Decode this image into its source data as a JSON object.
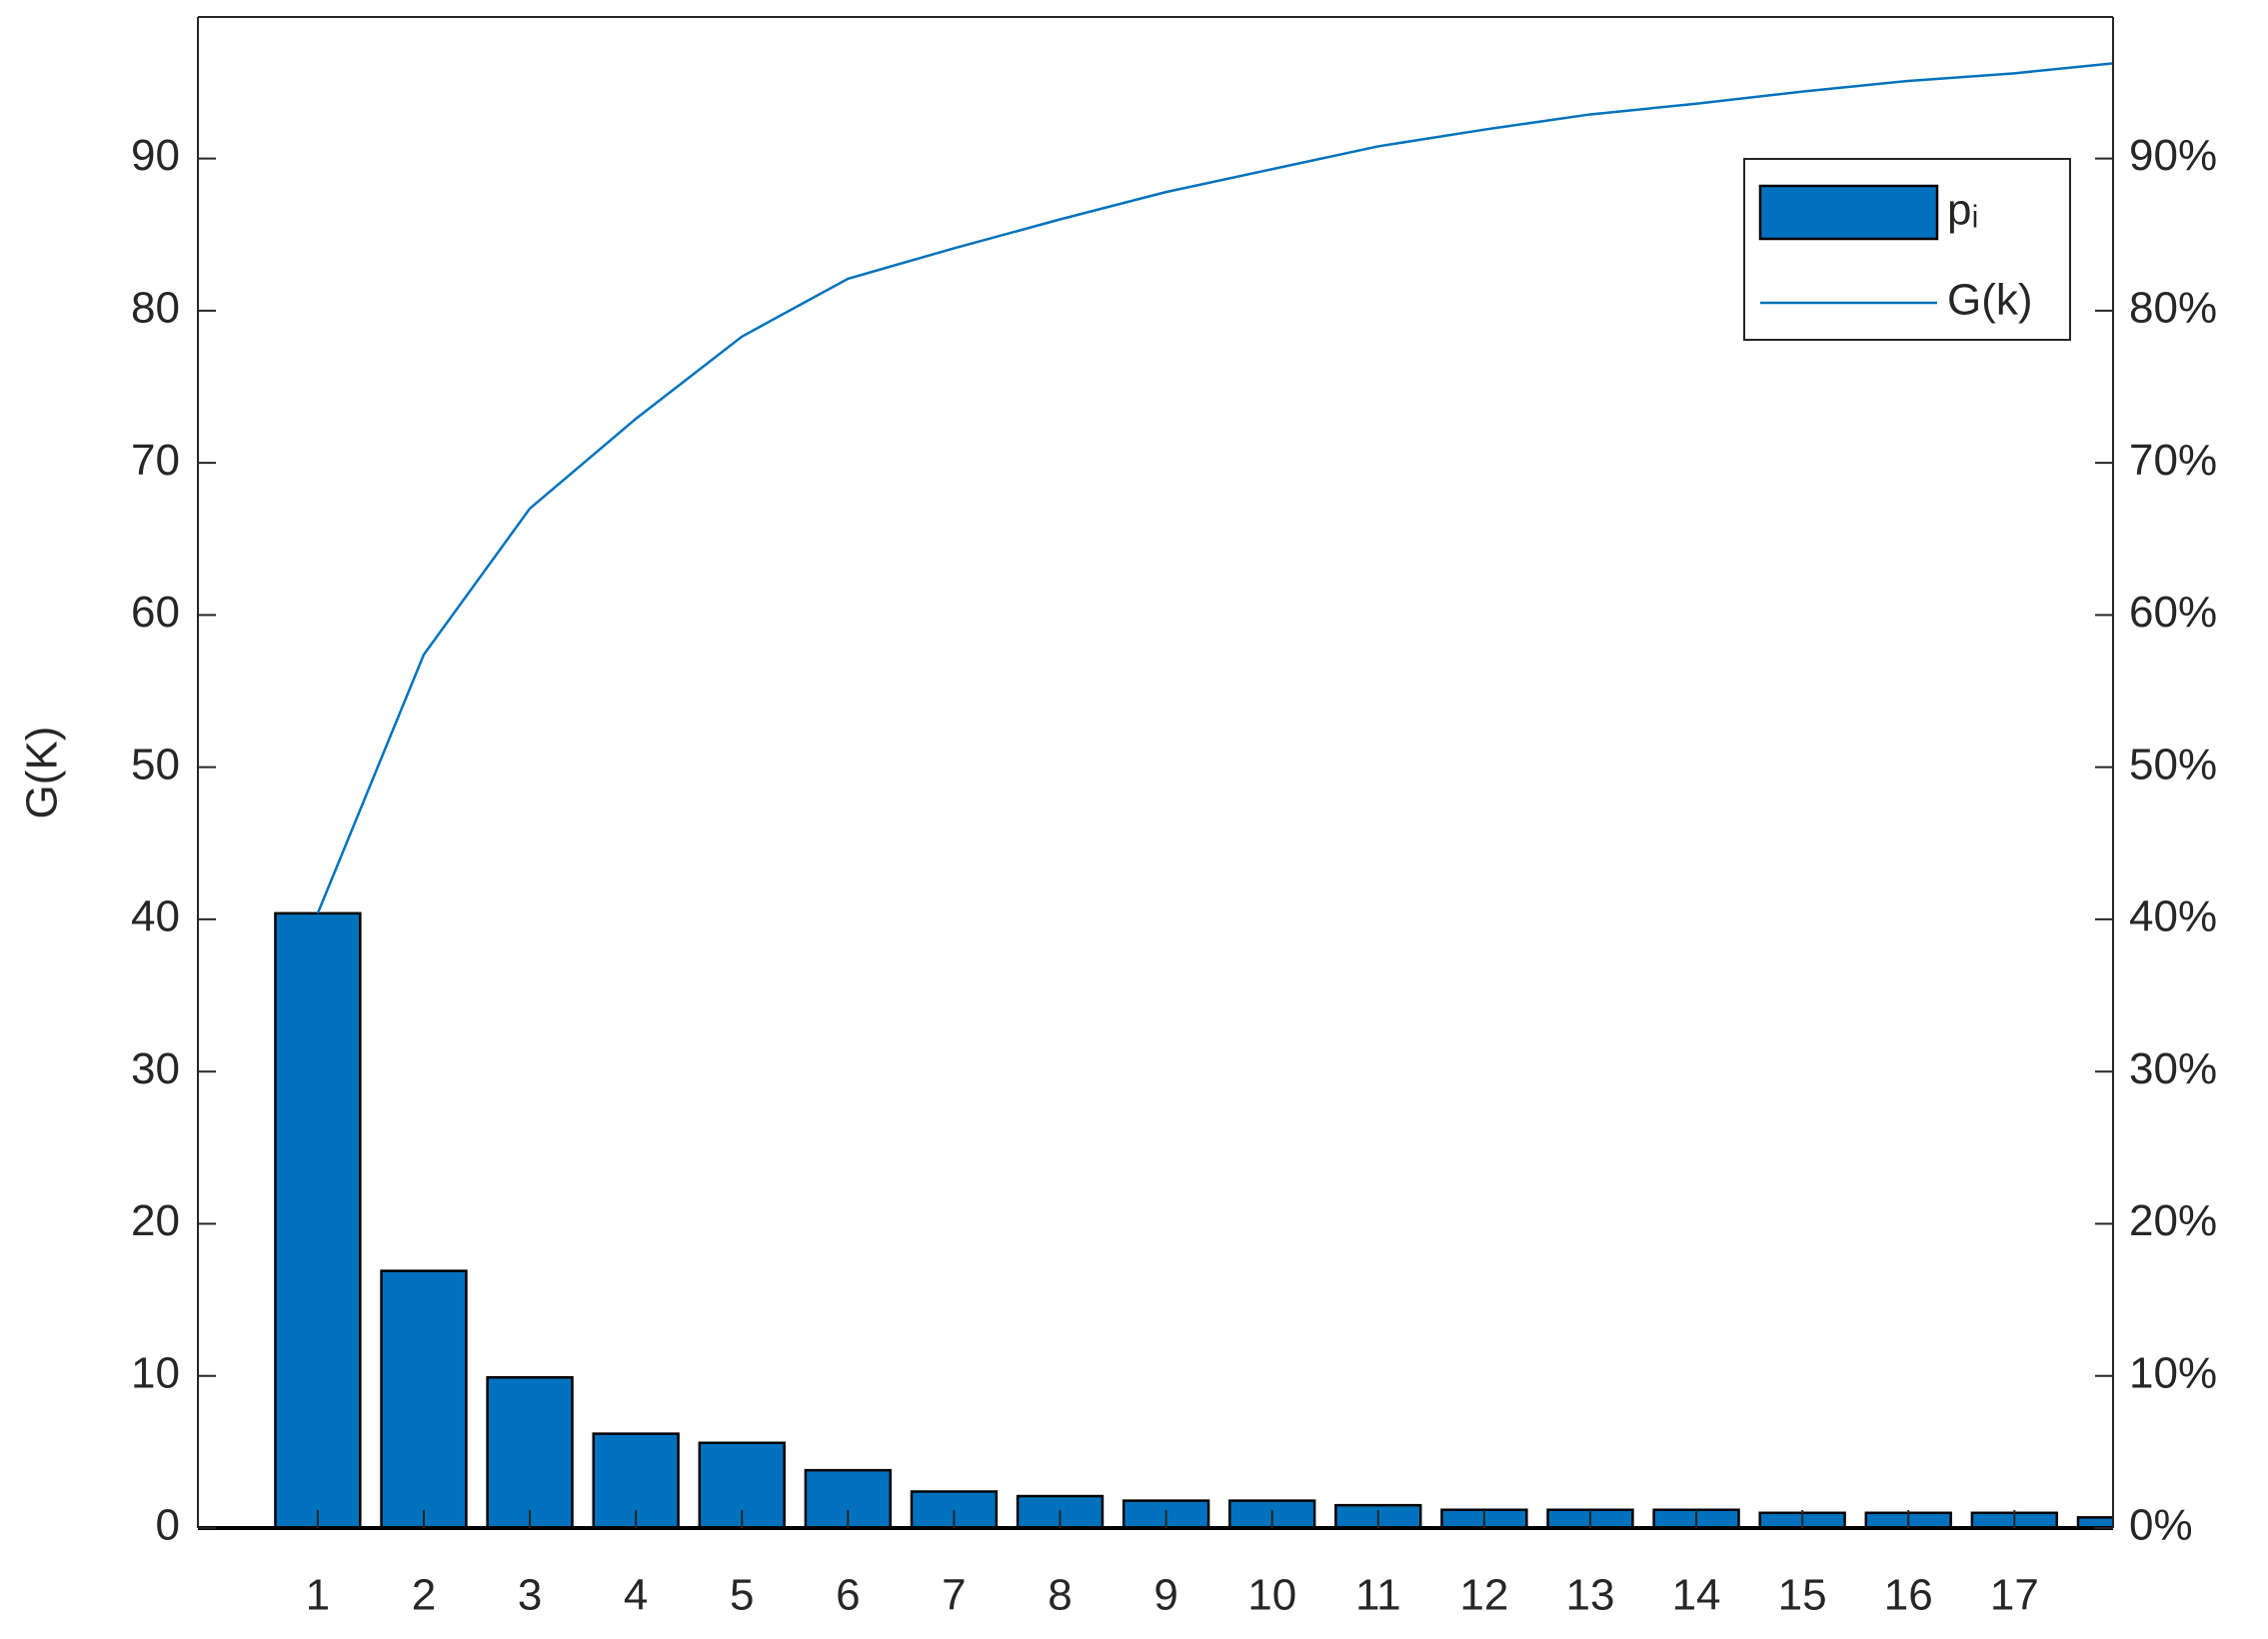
{
  "chart_data": {
    "type": "pareto",
    "y_label": "G(K)",
    "x": [
      1,
      2,
      3,
      4,
      5,
      6,
      7,
      8,
      9,
      10,
      11,
      12,
      13,
      14,
      15,
      16,
      17,
      18
    ],
    "xlim": [
      -0.13,
      17.93
    ],
    "xticks": [
      1,
      2,
      3,
      4,
      5,
      6,
      7,
      8,
      9,
      10,
      11,
      12,
      13,
      14,
      15,
      16,
      17
    ],
    "ylim": [
      0,
      99.3
    ],
    "yticks": [
      0,
      10,
      20,
      30,
      40,
      50,
      60,
      70,
      80,
      90
    ],
    "y2lim": [
      0,
      99.3
    ],
    "y2ticks": [
      {
        "value": 0,
        "label": "0%"
      },
      {
        "value": 10,
        "label": "10%"
      },
      {
        "value": 20,
        "label": "20%"
      },
      {
        "value": 30,
        "label": "30%"
      },
      {
        "value": 40,
        "label": "40%"
      },
      {
        "value": 50,
        "label": "50%"
      },
      {
        "value": 60,
        "label": "60%"
      },
      {
        "value": 70,
        "label": "70%"
      },
      {
        "value": 80,
        "label": "80%"
      },
      {
        "value": 90,
        "label": "90%"
      }
    ],
    "grid": false,
    "legend": "northeast",
    "series": [
      {
        "name": "pᵢ",
        "color": "#0072bd",
        "values": [
          40.4,
          16.9,
          9.9,
          6.2,
          5.6,
          3.8,
          2.4,
          2.1,
          1.8,
          1.8,
          1.5,
          1.2,
          1.2,
          1.2,
          1.0,
          1.0,
          1.0,
          0.7
        ]
      },
      {
        "name": "G(k)",
        "color": "#0072bd",
        "axis": "y2",
        "values": [
          40.4,
          57.4,
          67.0,
          72.9,
          78.3,
          82.1,
          84.1,
          86.0,
          87.8,
          89.3,
          90.8,
          91.9,
          92.9,
          93.6,
          94.4,
          95.1,
          95.6,
          96.3
        ]
      }
    ]
  }
}
